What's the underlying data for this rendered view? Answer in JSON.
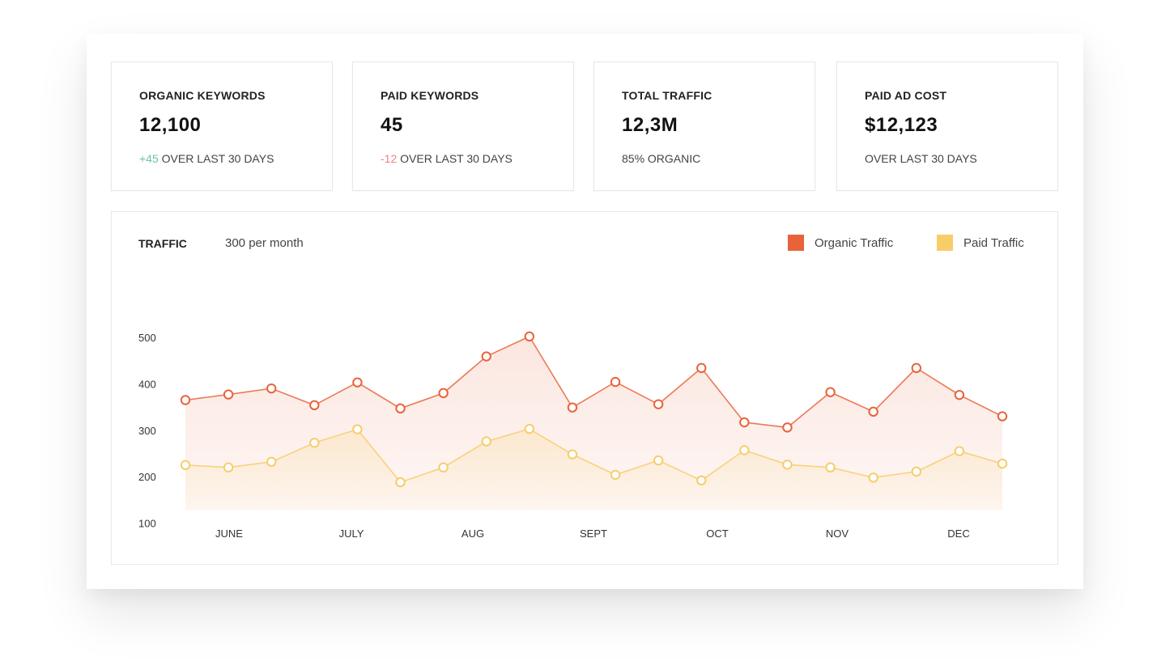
{
  "cards": [
    {
      "title": "ORGANIC KEYWORDS",
      "value": "12,100",
      "delta": "+45",
      "delta_type": "positive",
      "sub": " OVER LAST 30 DAYS"
    },
    {
      "title": "PAID KEYWORDS",
      "value": "45",
      "delta": "-12",
      "delta_type": "negative",
      "sub": " OVER LAST 30 DAYS"
    },
    {
      "title": "TOTAL TRAFFIC",
      "value": "12,3M",
      "delta": "",
      "delta_type": "none",
      "sub": "85% ORGANIC"
    },
    {
      "title": "PAID AD COST",
      "value": "$12,123",
      "delta": "",
      "delta_type": "none",
      "sub": "OVER LAST 30 DAYS"
    }
  ],
  "chart": {
    "title": "TRAFFIC",
    "subtitle": "300 per month"
  },
  "colors": {
    "organic": "#e8633a",
    "paid": "#f7cd6a",
    "positive": "#6cc3a0",
    "negative": "#f08378"
  },
  "chart_data": {
    "type": "area",
    "title": "TRAFFIC",
    "subtitle": "300 per month",
    "x_tick_labels": [
      "JUNE",
      "JULY",
      "AUG",
      "SEPT",
      "OCT",
      "NOV",
      "DEC"
    ],
    "y_ticks": [
      100,
      200,
      300,
      400,
      500
    ],
    "ylim": [
      0,
      500
    ],
    "legend_position": "top-right",
    "grid": false,
    "series": [
      {
        "name": "Organic Traffic",
        "color": "#e8633a",
        "values": [
          365,
          377,
          390,
          354,
          403,
          347,
          380,
          459,
          502,
          349,
          404,
          356,
          434,
          317,
          306,
          382,
          340,
          434,
          376,
          330
        ]
      },
      {
        "name": "Paid Traffic",
        "color": "#f7cd6a",
        "values": [
          225,
          220,
          232,
          273,
          302,
          188,
          220,
          276,
          303,
          248,
          204,
          235,
          192,
          257,
          226,
          220,
          198,
          211,
          255,
          228
        ]
      }
    ]
  }
}
